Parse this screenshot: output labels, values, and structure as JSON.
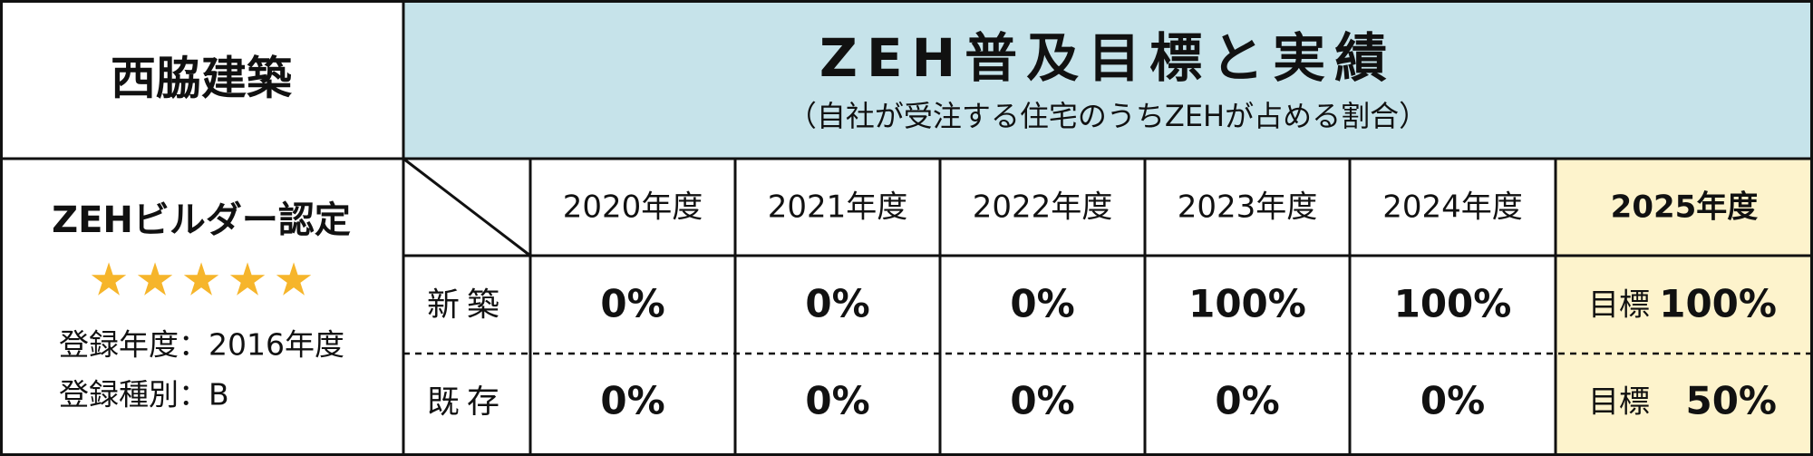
{
  "company": "西脇建築",
  "header": {
    "title": "ZEH普及目標と実績",
    "subtitle": "（自社が受注する住宅のうちZEHが占める割合）"
  },
  "certification": {
    "title": "ZEHビルダー認定",
    "stars": 5,
    "registration_year": "登録年度：2016年度",
    "registration_type": "登録種別：B"
  },
  "table": {
    "columns": [
      "2020年度",
      "2021年度",
      "2022年度",
      "2023年度",
      "2024年度",
      "2025年度"
    ],
    "rows": [
      {
        "label": "新築",
        "values": [
          "0%",
          "0%",
          "0%",
          "100%",
          "100%"
        ],
        "target": {
          "label": "目標",
          "value": "100%"
        }
      },
      {
        "label": "既存",
        "values": [
          "0%",
          "0%",
          "0%",
          "0%",
          "0%"
        ],
        "target": {
          "label": "目標",
          "value": "50%"
        }
      }
    ]
  }
}
